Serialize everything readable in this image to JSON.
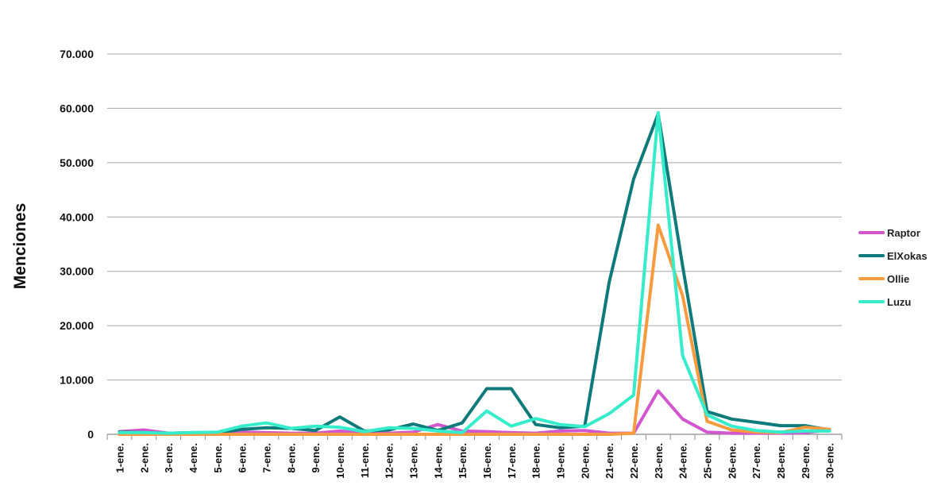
{
  "chart_data": {
    "type": "line",
    "title": "",
    "xlabel": "",
    "ylabel": "Menciones",
    "ylim": [
      0,
      70000
    ],
    "yticks": [
      0,
      10000,
      20000,
      30000,
      40000,
      50000,
      60000,
      70000
    ],
    "ytick_labels": [
      "0",
      "10.000",
      "20.000",
      "30.000",
      "40.000",
      "50.000",
      "60.000",
      "70.000"
    ],
    "grid": true,
    "legend_position": "right",
    "categories": [
      "1-ene.",
      "2-ene.",
      "3-ene.",
      "4-ene.",
      "5-ene.",
      "6-ene.",
      "7-ene.",
      "8-ene.",
      "9-ene.",
      "10-ene.",
      "11-ene.",
      "12-ene.",
      "13-ene.",
      "14-ene.",
      "15-ene.",
      "16-ene.",
      "17-ene.",
      "18-ene.",
      "19-ene.",
      "20-ene.",
      "21-ene.",
      "22-ene.",
      "23-ene.",
      "24-ene.",
      "25-ene.",
      "26-ene.",
      "27-ene.",
      "28-ene.",
      "29-ene.",
      "30-ene."
    ],
    "series": [
      {
        "name": "Raptor",
        "color": "#d157cf",
        "values": [
          500,
          800,
          200,
          200,
          200,
          400,
          300,
          200,
          200,
          600,
          200,
          200,
          400,
          1800,
          600,
          500,
          300,
          200,
          600,
          700,
          200,
          200,
          8000,
          2800,
          400,
          200,
          200,
          200,
          300,
          800
        ]
      },
      {
        "name": "ElXokas",
        "color": "#0f7a7a",
        "values": [
          400,
          300,
          200,
          300,
          300,
          900,
          1200,
          1100,
          700,
          3200,
          600,
          800,
          1900,
          700,
          2100,
          8400,
          8400,
          1800,
          1200,
          1500,
          28000,
          47000,
          59000,
          31000,
          4200,
          2800,
          2200,
          1600,
          1600,
          800
        ]
      },
      {
        "name": "Ollie",
        "color": "#f79b3e",
        "values": [
          0,
          0,
          0,
          0,
          0,
          0,
          0,
          0,
          0,
          0,
          0,
          0,
          0,
          0,
          0,
          0,
          0,
          0,
          0,
          0,
          0,
          200,
          38500,
          25500,
          2400,
          800,
          400,
          300,
          1300,
          900
        ]
      },
      {
        "name": "Luzu",
        "color": "#35eccb",
        "values": [
          300,
          300,
          200,
          300,
          400,
          1500,
          2100,
          1100,
          1500,
          1300,
          500,
          1200,
          1100,
          600,
          300,
          4300,
          1500,
          2900,
          1800,
          1400,
          3800,
          7200,
          59200,
          14500,
          3600,
          1500,
          700,
          400,
          600,
          600
        ]
      }
    ]
  }
}
